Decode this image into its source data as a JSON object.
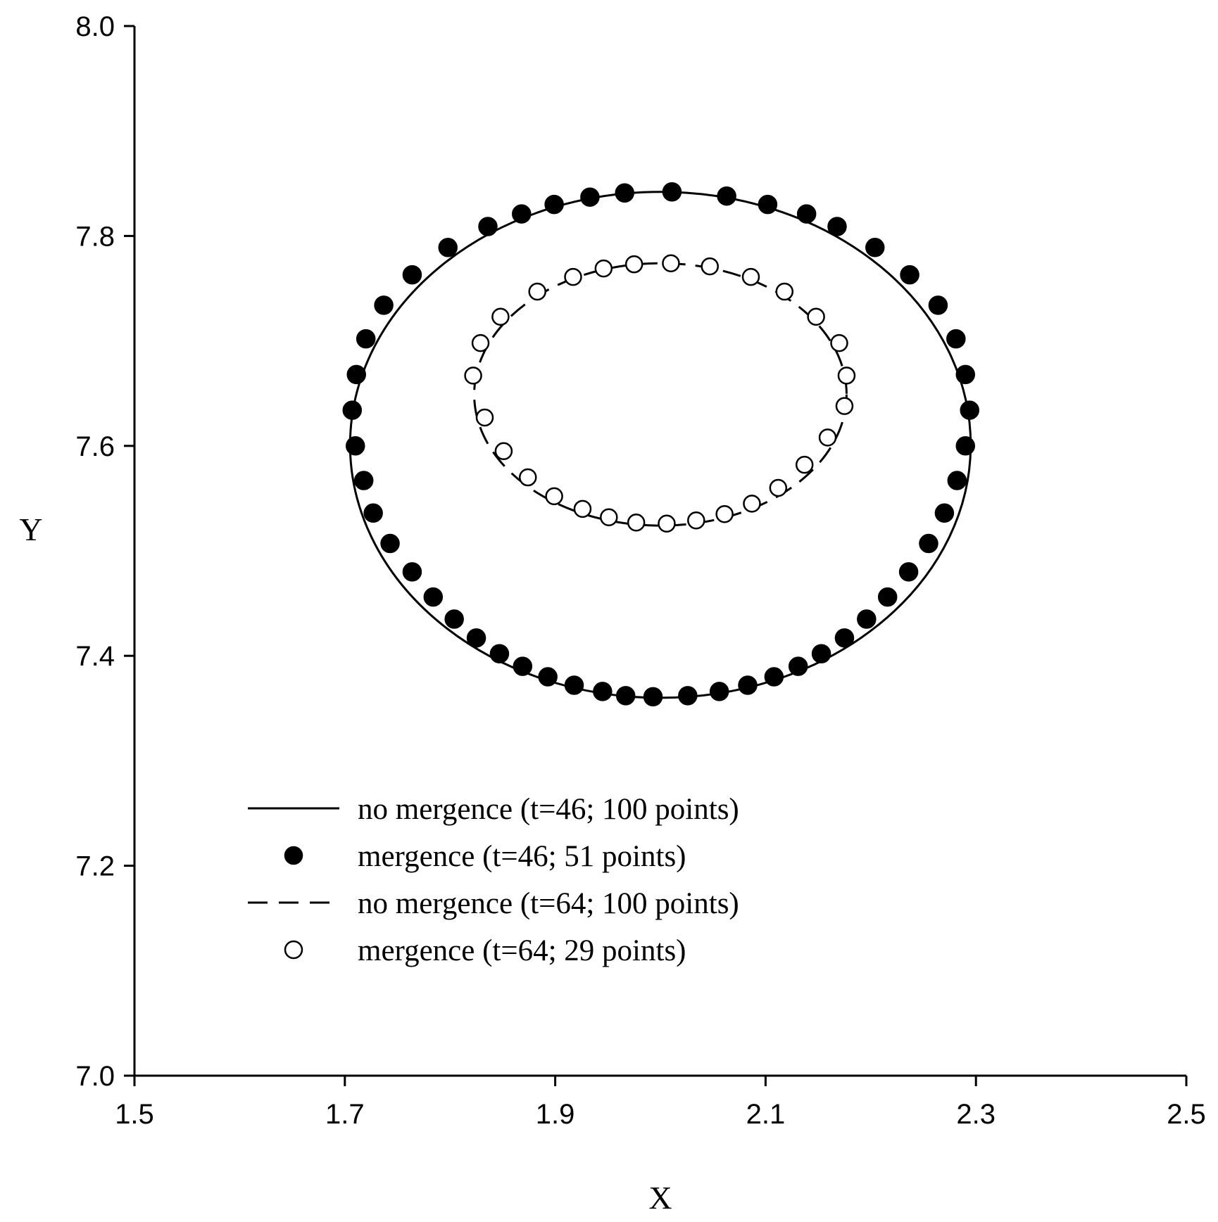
{
  "chart_data": {
    "type": "scatter",
    "title": "",
    "xlabel": "X",
    "ylabel": "Y",
    "xlim": [
      1.5,
      2.5
    ],
    "ylim": [
      7.0,
      8.0
    ],
    "xticks": [
      "1.5",
      "1.7",
      "1.9",
      "2.1",
      "2.3",
      "2.5"
    ],
    "yticks": [
      "7.0",
      "7.2",
      "7.4",
      "7.6",
      "7.8",
      "8.0"
    ],
    "grid": false,
    "legend_position": "lower-left",
    "series": [
      {
        "name": "no mergence (t=46; 100 points)",
        "style": "solid-line",
        "shape": "ellipse",
        "center": [
          2.0,
          7.601
        ],
        "radius_x": 0.295,
        "radius_y": 0.241
      },
      {
        "name": "mergence (t=46; 51 points)",
        "style": "filled-circle",
        "points": [
          [
            1.993,
            7.361
          ],
          [
            2.026,
            7.362
          ],
          [
            2.056,
            7.366
          ],
          [
            2.083,
            7.372
          ],
          [
            2.108,
            7.38
          ],
          [
            2.131,
            7.39
          ],
          [
            2.153,
            7.402
          ],
          [
            2.175,
            7.417
          ],
          [
            2.196,
            7.435
          ],
          [
            2.216,
            7.456
          ],
          [
            2.236,
            7.48
          ],
          [
            2.255,
            7.507
          ],
          [
            2.27,
            7.536
          ],
          [
            2.282,
            7.567
          ],
          [
            2.29,
            7.6
          ],
          [
            2.294,
            7.634
          ],
          [
            2.29,
            7.668
          ],
          [
            2.281,
            7.702
          ],
          [
            2.264,
            7.734
          ],
          [
            2.237,
            7.763
          ],
          [
            2.204,
            7.789
          ],
          [
            2.168,
            7.809
          ],
          [
            2.139,
            7.821
          ],
          [
            2.102,
            7.83
          ],
          [
            2.063,
            7.838
          ],
          [
            2.011,
            7.842
          ],
          [
            1.966,
            7.841
          ],
          [
            1.933,
            7.837
          ],
          [
            1.899,
            7.83
          ],
          [
            1.868,
            7.821
          ],
          [
            1.836,
            7.809
          ],
          [
            1.798,
            7.789
          ],
          [
            1.764,
            7.763
          ],
          [
            1.737,
            7.734
          ],
          [
            1.72,
            7.702
          ],
          [
            1.711,
            7.668
          ],
          [
            1.707,
            7.634
          ],
          [
            1.71,
            7.6
          ],
          [
            1.718,
            7.567
          ],
          [
            1.727,
            7.536
          ],
          [
            1.743,
            7.507
          ],
          [
            1.764,
            7.48
          ],
          [
            1.784,
            7.456
          ],
          [
            1.804,
            7.435
          ],
          [
            1.825,
            7.417
          ],
          [
            1.847,
            7.402
          ],
          [
            1.869,
            7.39
          ],
          [
            1.893,
            7.38
          ],
          [
            1.918,
            7.372
          ],
          [
            1.945,
            7.366
          ],
          [
            1.967,
            7.362
          ]
        ]
      },
      {
        "name": "no mergence (t=64; 100 points)",
        "style": "dashed-line",
        "shape": "ellipse",
        "center": [
          2.0,
          7.649
        ],
        "radius_x": 0.177,
        "radius_y": 0.125
      },
      {
        "name": "mergence (t=64; 29 points)",
        "style": "open-circle",
        "points": [
          [
            2.006,
            7.526
          ],
          [
            2.034,
            7.529
          ],
          [
            2.061,
            7.535
          ],
          [
            2.087,
            7.545
          ],
          [
            2.112,
            7.56
          ],
          [
            2.137,
            7.582
          ],
          [
            2.159,
            7.608
          ],
          [
            2.175,
            7.638
          ],
          [
            2.177,
            7.667
          ],
          [
            2.17,
            7.698
          ],
          [
            2.148,
            7.723
          ],
          [
            2.118,
            7.747
          ],
          [
            2.086,
            7.761
          ],
          [
            2.047,
            7.771
          ],
          [
            2.01,
            7.774
          ],
          [
            1.975,
            7.773
          ],
          [
            1.946,
            7.769
          ],
          [
            1.917,
            7.761
          ],
          [
            1.883,
            7.747
          ],
          [
            1.848,
            7.723
          ],
          [
            1.829,
            7.698
          ],
          [
            1.822,
            7.667
          ],
          [
            1.833,
            7.627
          ],
          [
            1.851,
            7.595
          ],
          [
            1.874,
            7.57
          ],
          [
            1.899,
            7.552
          ],
          [
            1.926,
            7.54
          ],
          [
            1.951,
            7.532
          ],
          [
            1.977,
            7.527
          ]
        ]
      }
    ]
  },
  "colors": {
    "axis": "#000000",
    "filled_marker": "#000000",
    "open_marker_fill": "#ffffff"
  }
}
